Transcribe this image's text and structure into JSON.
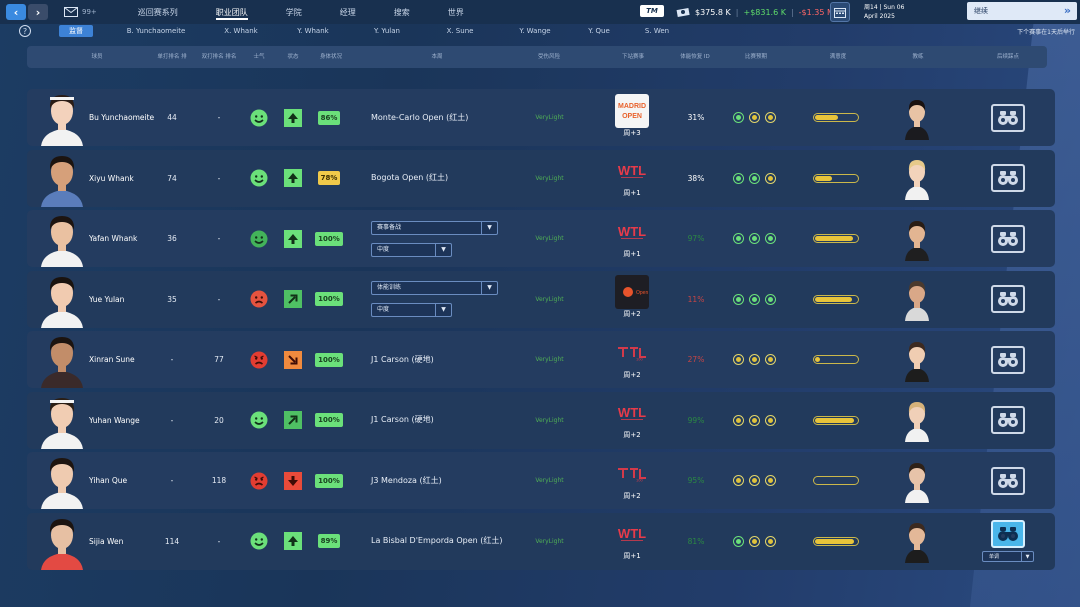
{
  "topbar": {
    "nav_back": "‹",
    "nav_forward": "›",
    "mail_count": "99+",
    "nav_items": [
      {
        "label": "巡回赛系列",
        "active": false
      },
      {
        "label": "职业团队",
        "active": true
      },
      {
        "label": "学院",
        "active": false
      },
      {
        "label": "经理",
        "active": false
      },
      {
        "label": "搜索",
        "active": false
      },
      {
        "label": "世界",
        "active": false
      }
    ],
    "tm_logo": "TM",
    "balance": "$375.8 K",
    "income": "+$831.6 K",
    "expense": "-$1.35 M",
    "date_line1": "周14 | Sun 06",
    "date_line2": "April 2025",
    "continue_label": "继续"
  },
  "filter": {
    "tabs": [
      "监督",
      "B. Yunchaomeite",
      "X. Whank",
      "Y. Whank",
      "Y. Yulan",
      "X. Sune",
      "Y. Wange",
      "Y. Que",
      "S. Wen"
    ],
    "active_index": 0,
    "next_event": "下个赛事在1天后举行"
  },
  "header": {
    "player": "球员",
    "rank1": "单打排名 排",
    "rank2": "双打排名 排名",
    "morale": "士气",
    "status": "状态",
    "condition": "身体状况",
    "plan": "本周",
    "risk": "受伤风险",
    "next": "下站赛事",
    "pct": "体能恢复 ID",
    "match_prep": "比赛预期",
    "satisfaction": "满意度",
    "coach": "教练",
    "scout": "后续踩点"
  },
  "players": [
    {
      "name": "Bu Yunchaomeite",
      "rank1": "44",
      "rank2": "-",
      "morale": "happy",
      "status": "up",
      "condition": "86%",
      "cond_level": "hi",
      "plan": "Monte-Carlo Open (红土)",
      "risk": "VeryLight",
      "next_logo": "madrid-open",
      "next_week": "周+3",
      "pct": "31%",
      "pct_style": "high",
      "dots": [
        "g",
        "y",
        "y"
      ],
      "bar": 0.55,
      "scout_active": false,
      "scout_dd": ""
    },
    {
      "name": "Xiyu Whank",
      "rank1": "74",
      "rank2": "-",
      "morale": "happy",
      "status": "up",
      "condition": "78%",
      "cond_level": "mid",
      "plan": "Bogota Open (红土)",
      "risk": "VeryLight",
      "next_logo": "wtl",
      "next_week": "周+1",
      "pct": "38%",
      "pct_style": "high",
      "dots": [
        "g",
        "g",
        "y"
      ],
      "bar": 0.4,
      "scout_active": false,
      "scout_dd": ""
    },
    {
      "name": "Yafan Whank",
      "rank1": "36",
      "rank2": "-",
      "morale": "happy-dim",
      "status": "up",
      "condition": "100%",
      "cond_level": "hi",
      "plan_dd1": "赛事备战",
      "plan_dd2": "中度",
      "risk": "VeryLight",
      "next_logo": "wtl",
      "next_week": "周+1",
      "pct": "97%",
      "pct_style": "dim",
      "dots": [
        "g",
        "g",
        "g"
      ],
      "bar": 0.9,
      "scout_active": false,
      "scout_dd": ""
    },
    {
      "name": "Yue Yulan",
      "rank1": "35",
      "rank2": "-",
      "morale": "sad",
      "status": "up-right",
      "condition": "100%",
      "cond_level": "hi",
      "plan_dd1": "体能训练",
      "plan_dd2": "中度",
      "risk": "VeryLight",
      "next_logo": "open-dark",
      "next_week": "周+2",
      "pct": "11%",
      "pct_style": "red",
      "dots": [
        "g",
        "g",
        "g"
      ],
      "bar": 0.88,
      "scout_active": false,
      "scout_dd": ""
    },
    {
      "name": "Xinran Sune",
      "rank1": "-",
      "rank2": "77",
      "morale": "angry",
      "status": "down-right",
      "condition": "100%",
      "cond_level": "hi",
      "plan": "J1 Carson (硬地)",
      "risk": "VeryLight",
      "next_logo": "itf",
      "next_week": "周+2",
      "pct": "27%",
      "pct_style": "red",
      "dots": [
        "y",
        "y",
        "y"
      ],
      "bar": 0.12,
      "scout_active": false,
      "scout_dd": ""
    },
    {
      "name": "Yuhan Wange",
      "rank1": "-",
      "rank2": "20",
      "morale": "happy",
      "status": "up-right",
      "condition": "100%",
      "cond_level": "hi",
      "plan": "J1 Carson (硬地)",
      "risk": "VeryLight",
      "next_logo": "wtl",
      "next_week": "周+2",
      "pct": "99%",
      "pct_style": "dim",
      "dots": [
        "y",
        "y",
        "y"
      ],
      "bar": 0.92,
      "scout_active": false,
      "scout_dd": ""
    },
    {
      "name": "Yihan Que",
      "rank1": "-",
      "rank2": "118",
      "morale": "angry",
      "status": "down",
      "condition": "100%",
      "cond_level": "hi",
      "plan": "J3 Mendoza (红土)",
      "risk": "VeryLight",
      "next_logo": "itf",
      "next_week": "周+2",
      "pct": "95%",
      "pct_style": "dim",
      "dots": [
        "y",
        "y",
        "y"
      ],
      "bar": 0.0,
      "scout_active": false,
      "scout_dd": ""
    },
    {
      "name": "Sijia Wen",
      "rank1": "114",
      "rank2": "-",
      "morale": "happy",
      "status": "up",
      "condition": "89%",
      "cond_level": "hi",
      "plan": "La Bisbal D'Emporda Open (红土)",
      "risk": "VeryLight",
      "next_logo": "wtl",
      "next_week": "周+1",
      "pct": "81%",
      "pct_style": "dim",
      "dots": [
        "g",
        "y",
        "y"
      ],
      "bar": 0.92,
      "scout_active": true,
      "scout_dd": "单调"
    }
  ],
  "colors": {
    "accent": "#3d82d6",
    "happy": "#6be07a",
    "angry": "#e84b3c",
    "gold": "#e8c43a"
  }
}
